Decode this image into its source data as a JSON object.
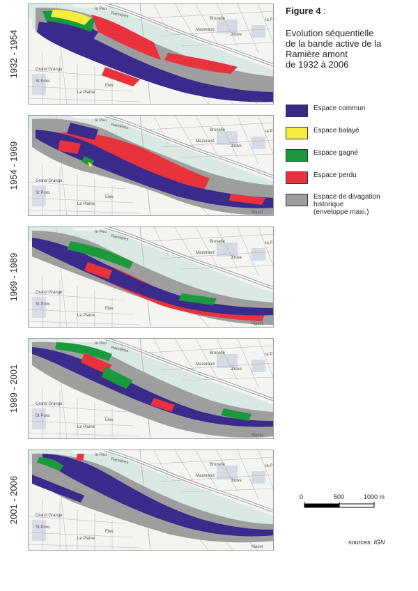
{
  "figure": {
    "title": "Figure 4",
    "title_suffix": " :",
    "description_lines": [
      "Evolution séquentielle",
      "de la bande active de la",
      "Ramière amont",
      "de 1932 à 2006"
    ]
  },
  "panels": [
    {
      "period": "1932 - 1954"
    },
    {
      "period": "1954 - 1969"
    },
    {
      "period": "1969 - 1989"
    },
    {
      "period": "1989 - 2001"
    },
    {
      "period": "2001 - 2006"
    }
  ],
  "map_labels": {
    "ramieres": "Ramières",
    "brunelle": "Brunelle",
    "mazerand": "Mazerand",
    "grand_grange": "Grand Grange",
    "le_peu": "le Peu",
    "la_p": "la P",
    "st_pons": "St Pons",
    "le_plaine": "Le Plaine",
    "elev": "Elev.",
    "jouve": "Jouve",
    "le_mazet": "Mazet",
    "l_ferme": "Ferme"
  },
  "legend": {
    "items": [
      {
        "label_lines": [
          "Espace commun"
        ],
        "color": "#3a2a8c"
      },
      {
        "label_lines": [
          "Espace balayé"
        ],
        "color": "#f6ee3a"
      },
      {
        "label_lines": [
          "Espace gagné"
        ],
        "color": "#1a9a3c"
      },
      {
        "label_lines": [
          "Espace perdu"
        ],
        "color": "#e8333c"
      },
      {
        "label_lines": [
          "Espace de divagation",
          "historique",
          "(enveloppe maxi.)"
        ],
        "color": "#9e9e9e"
      }
    ]
  },
  "scale": {
    "ticks": [
      "0",
      "500",
      "1000 m"
    ]
  },
  "sources": "sources: IGN"
}
